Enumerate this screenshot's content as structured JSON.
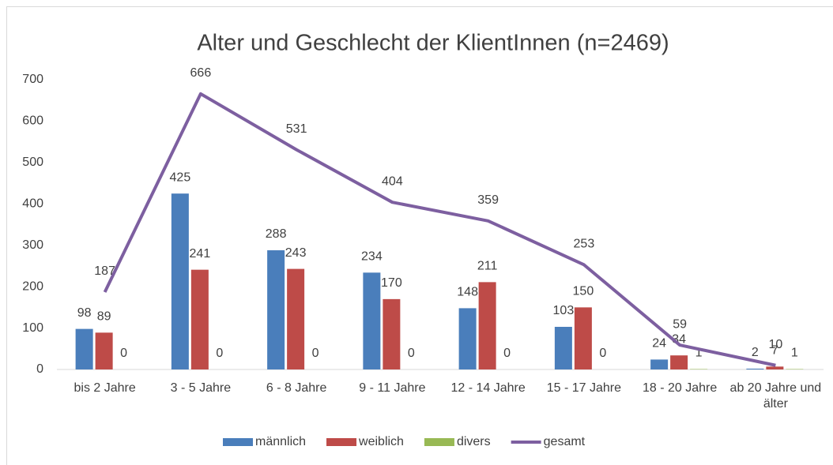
{
  "chart_data": {
    "type": "bar-line",
    "title": "Alter und Geschlecht der KlientInnen (n=2469)",
    "categories": [
      "bis 2 Jahre",
      "3 - 5 Jahre",
      "6 - 8 Jahre",
      "9 - 11 Jahre",
      "12 - 14 Jahre",
      "15 - 17 Jahre",
      "18 - 20 Jahre",
      "ab 20 Jahre und älter"
    ],
    "series": [
      {
        "name": "männlich",
        "type": "bar",
        "color": "#4a7ebb",
        "values": [
          98,
          425,
          288,
          234,
          148,
          103,
          24,
          2
        ]
      },
      {
        "name": "weiblich",
        "type": "bar",
        "color": "#be4b48",
        "values": [
          89,
          241,
          243,
          170,
          211,
          150,
          34,
          7
        ]
      },
      {
        "name": "divers",
        "type": "bar",
        "color": "#98b954",
        "values": [
          0,
          0,
          0,
          0,
          0,
          0,
          1,
          1
        ]
      },
      {
        "name": "gesamt",
        "type": "line",
        "color": "#7d5fa0",
        "values": [
          187,
          666,
          531,
          404,
          359,
          253,
          59,
          10
        ]
      }
    ],
    "ylim": [
      0,
      700
    ],
    "yticks": [
      0,
      100,
      200,
      300,
      400,
      500,
      600,
      700
    ],
    "grid": false,
    "legend": "bottom"
  }
}
